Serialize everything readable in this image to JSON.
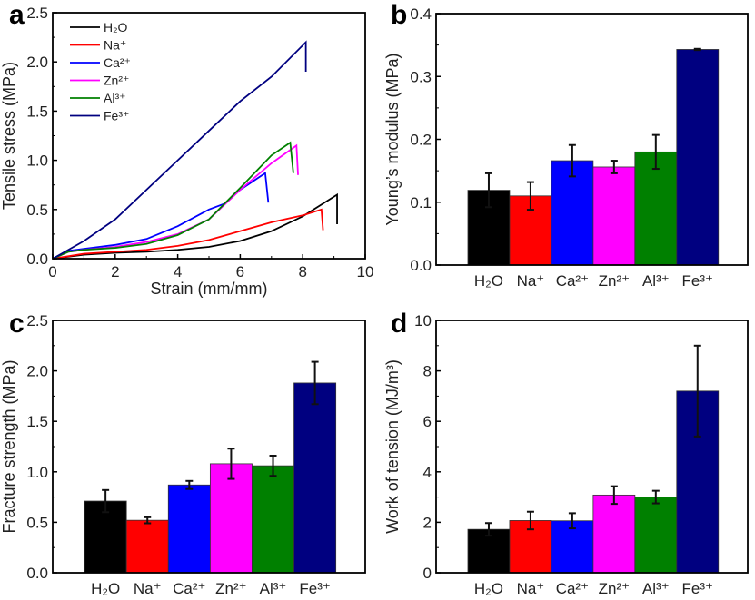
{
  "chart_data": [
    {
      "panel": "a",
      "type": "line",
      "xlabel": "Strain (mm/mm)",
      "ylabel": "Tensile stress (MPa)",
      "xlim": [
        0,
        10
      ],
      "ylim": [
        0,
        2.5
      ],
      "xticks": [
        "0",
        "2",
        "4",
        "6",
        "8",
        "10"
      ],
      "yticks": [
        "0.0",
        "0.5",
        "1.0",
        "1.5",
        "2.0",
        "2.5"
      ],
      "legend_position": "top-left",
      "series": [
        {
          "name": "H₂O",
          "color": "#000000",
          "points": [
            [
              0,
              0
            ],
            [
              1,
              0.04
            ],
            [
              2,
              0.06
            ],
            [
              3,
              0.07
            ],
            [
              4,
              0.09
            ],
            [
              5,
              0.12
            ],
            [
              6,
              0.18
            ],
            [
              7,
              0.28
            ],
            [
              8,
              0.43
            ],
            [
              9.1,
              0.65
            ],
            [
              9.1,
              0.35
            ]
          ]
        },
        {
          "name": "Na⁺",
          "color": "#ff0000",
          "points": [
            [
              0,
              0
            ],
            [
              1,
              0.05
            ],
            [
              2,
              0.07
            ],
            [
              3,
              0.09
            ],
            [
              4,
              0.13
            ],
            [
              5,
              0.19
            ],
            [
              6,
              0.28
            ],
            [
              7,
              0.37
            ],
            [
              8,
              0.44
            ],
            [
              8.6,
              0.5
            ],
            [
              8.65,
              0.29
            ]
          ]
        },
        {
          "name": "Ca²⁺",
          "color": "#0000ff",
          "points": [
            [
              0,
              0
            ],
            [
              0.5,
              0.08
            ],
            [
              1,
              0.1
            ],
            [
              2,
              0.14
            ],
            [
              3,
              0.2
            ],
            [
              4,
              0.33
            ],
            [
              5,
              0.5
            ],
            [
              5.5,
              0.56
            ],
            [
              6,
              0.7
            ],
            [
              6.8,
              0.87
            ],
            [
              6.9,
              0.57
            ]
          ]
        },
        {
          "name": "Zn²⁺",
          "color": "#ff00ff",
          "points": [
            [
              0,
              0
            ],
            [
              0.5,
              0.07
            ],
            [
              1,
              0.09
            ],
            [
              2,
              0.12
            ],
            [
              3,
              0.17
            ],
            [
              4,
              0.25
            ],
            [
              5,
              0.4
            ],
            [
              6,
              0.7
            ],
            [
              7,
              0.97
            ],
            [
              7.8,
              1.15
            ],
            [
              7.85,
              0.85
            ]
          ]
        },
        {
          "name": "Al³⁺",
          "color": "#008000",
          "points": [
            [
              0,
              0
            ],
            [
              0.5,
              0.07
            ],
            [
              1,
              0.09
            ],
            [
              2,
              0.11
            ],
            [
              3,
              0.15
            ],
            [
              4,
              0.24
            ],
            [
              5,
              0.4
            ],
            [
              6,
              0.72
            ],
            [
              7,
              1.05
            ],
            [
              7.6,
              1.18
            ],
            [
              7.7,
              0.87
            ]
          ]
        },
        {
          "name": "Fe³⁺",
          "color": "#000080",
          "points": [
            [
              0,
              0
            ],
            [
              1,
              0.18
            ],
            [
              2,
              0.4
            ],
            [
              3,
              0.7
            ],
            [
              4,
              1.0
            ],
            [
              5,
              1.3
            ],
            [
              6,
              1.6
            ],
            [
              7,
              1.85
            ],
            [
              8.1,
              2.2
            ],
            [
              8.1,
              1.9
            ]
          ]
        }
      ]
    },
    {
      "panel": "b",
      "type": "bar",
      "ylabel": "Young’s modulus (MPa)",
      "ylim": [
        0,
        0.4
      ],
      "yticks": [
        "0.0",
        "0.1",
        "0.2",
        "0.3",
        "0.4"
      ],
      "categories": [
        "H₂O",
        "Na⁺",
        "Ca²⁺",
        "Zn²⁺",
        "Al³⁺",
        "Fe³⁺"
      ],
      "colors": [
        "#000000",
        "#ff0000",
        "#0000ff",
        "#ff00ff",
        "#008000",
        "#000080"
      ],
      "values": [
        0.119,
        0.11,
        0.166,
        0.156,
        0.18,
        0.343
      ],
      "errors": [
        0.027,
        0.022,
        0.025,
        0.01,
        0.027,
        0.001
      ]
    },
    {
      "panel": "c",
      "type": "bar",
      "ylabel": "Fracture strength (MPa)",
      "ylim": [
        0,
        2.5
      ],
      "yticks": [
        "0.0",
        "0.5",
        "1.0",
        "1.5",
        "2.0",
        "2.5"
      ],
      "categories": [
        "H₂O",
        "Na⁺",
        "Ca²⁺",
        "Zn²⁺",
        "Al³⁺",
        "Fe³⁺"
      ],
      "colors": [
        "#000000",
        "#ff0000",
        "#0000ff",
        "#ff00ff",
        "#008000",
        "#000080"
      ],
      "values": [
        0.71,
        0.52,
        0.87,
        1.08,
        1.06,
        1.88
      ],
      "errors": [
        0.11,
        0.03,
        0.04,
        0.15,
        0.1,
        0.21
      ]
    },
    {
      "panel": "d",
      "type": "bar",
      "ylabel": "Work of tension (MJ/m³)",
      "ylim": [
        0,
        10
      ],
      "yticks": [
        "0",
        "2",
        "4",
        "6",
        "8",
        "10"
      ],
      "categories": [
        "H₂O",
        "Na⁺",
        "Ca²⁺",
        "Zn²⁺",
        "Al³⁺",
        "Fe³⁺"
      ],
      "colors": [
        "#000000",
        "#ff0000",
        "#0000ff",
        "#ff00ff",
        "#008000",
        "#000080"
      ],
      "values": [
        1.72,
        2.07,
        2.06,
        3.08,
        3.0,
        7.2
      ],
      "errors": [
        0.25,
        0.35,
        0.3,
        0.35,
        0.25,
        1.8
      ]
    }
  ]
}
